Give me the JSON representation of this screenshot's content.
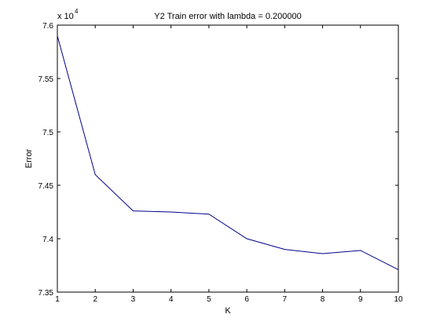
{
  "chart_data": {
    "type": "line",
    "title": "Y2 Train error with lambda = 0.200000",
    "xlabel": "K",
    "ylabel": "Error",
    "xlim": [
      1,
      10
    ],
    "ylim": [
      73500,
      76000
    ],
    "x_ticks": [
      "1",
      "2",
      "3",
      "4",
      "5",
      "6",
      "7",
      "8",
      "9",
      "10"
    ],
    "y_ticks": [
      "7.35",
      "7.4",
      "7.45",
      "7.5",
      "7.55",
      "7.6"
    ],
    "y_tick_values": [
      73500,
      74000,
      74500,
      75000,
      75500,
      76000
    ],
    "y_exponent_base": "x 10",
    "y_exponent_power": "4",
    "grid": false,
    "line_color": "#00008b",
    "series": [
      {
        "x": [
          1,
          2,
          3,
          4,
          5,
          6,
          7,
          8,
          9,
          10
        ],
        "values": [
          75900,
          74600,
          74260,
          74250,
          74230,
          74000,
          73900,
          73860,
          73890,
          73710
        ]
      }
    ]
  }
}
